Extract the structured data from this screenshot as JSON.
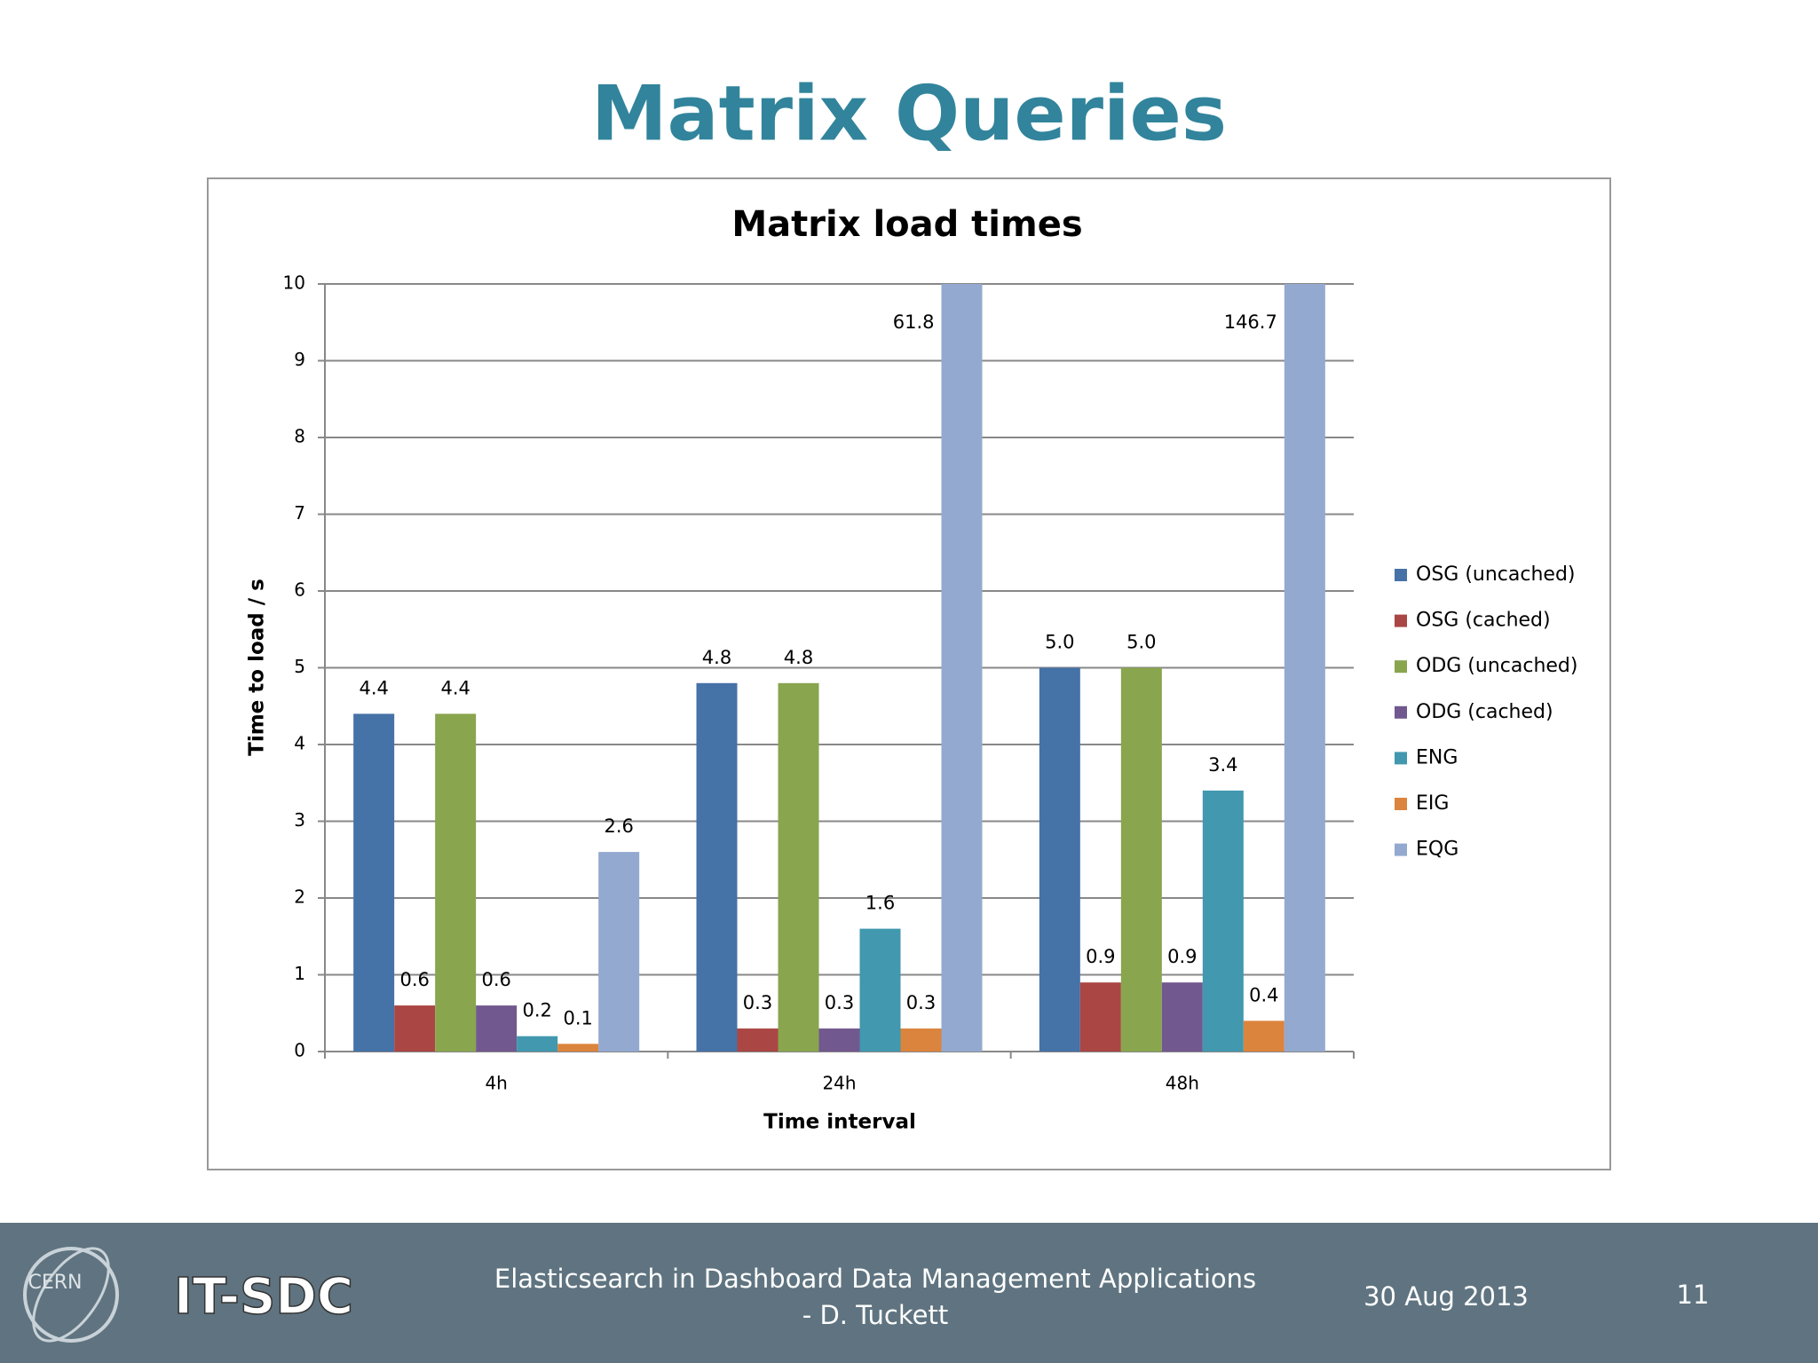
{
  "slide_title": "Matrix Queries",
  "chart_data": {
    "type": "bar",
    "title": "Matrix load times",
    "x_label": "Time interval",
    "y_label": "Time to load / s",
    "categories": [
      "4h",
      "24h",
      "48h"
    ],
    "series": [
      {
        "name": "OSG (uncached)",
        "color": "#4572a7",
        "values": [
          4.4,
          4.8,
          5.0
        ],
        "value_labels": [
          "4.4",
          "4.8",
          "5.0"
        ]
      },
      {
        "name": "OSG (cached)",
        "color": "#aa4643",
        "values": [
          0.6,
          0.3,
          0.9
        ],
        "value_labels": [
          "0.6",
          "0.3",
          "0.9"
        ]
      },
      {
        "name": "ODG (uncached)",
        "color": "#89a54e",
        "values": [
          4.4,
          4.8,
          5.0
        ],
        "value_labels": [
          "4.4",
          "4.8",
          "5.0"
        ]
      },
      {
        "name": "ODG (cached)",
        "color": "#71588f",
        "values": [
          0.6,
          0.3,
          0.9
        ],
        "value_labels": [
          "0.6",
          "0.3",
          "0.9"
        ]
      },
      {
        "name": "ENG",
        "color": "#4198af",
        "values": [
          0.2,
          1.6,
          3.4
        ],
        "value_labels": [
          "0.2",
          "1.6",
          "3.4"
        ]
      },
      {
        "name": "EIG",
        "color": "#db843d",
        "values": [
          0.1,
          0.3,
          0.4
        ],
        "value_labels": [
          "0.1",
          "0.3",
          "0.4"
        ]
      },
      {
        "name": "EQG",
        "color": "#93a9cf",
        "values": [
          2.6,
          61.8,
          146.7
        ],
        "value_labels": [
          "2.6",
          "61.8",
          "146.7"
        ]
      }
    ],
    "ylim": [
      0,
      10
    ],
    "yticks": [
      0,
      1,
      2,
      3,
      4,
      5,
      6,
      7,
      8,
      9,
      10
    ],
    "grid": true,
    "legend": "right"
  },
  "footer": {
    "logo": "CERN",
    "brand": "IT-SDC",
    "title_lines": [
      "Elasticsearch in Dashboard Data Management  Applications",
      "- D. Tuckett"
    ],
    "date": "30 Aug 2013",
    "page": "11"
  }
}
